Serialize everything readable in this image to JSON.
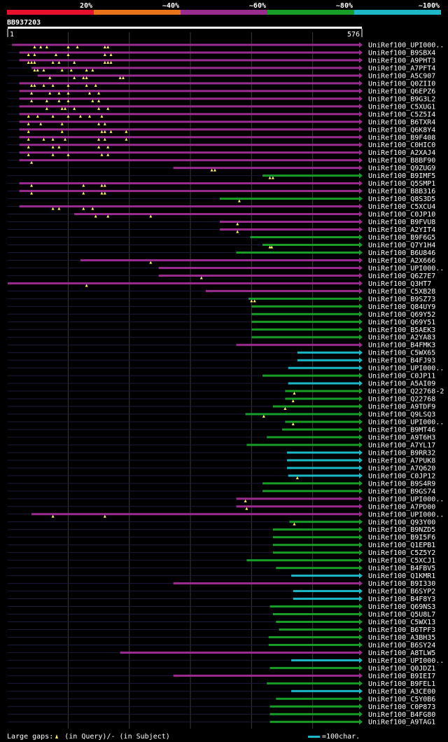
{
  "chart_data": {
    "type": "alignment-overview",
    "query": {
      "name": "BB937203",
      "start": 1,
      "end": 576
    },
    "identity_legend": [
      {
        "label": "20%",
        "color": "#e8112d"
      },
      {
        "label": "~40%",
        "color": "#e8731a"
      },
      {
        "label": "~60%",
        "color": "#9b2c8f"
      },
      {
        "label": "~80%",
        "color": "#189d28"
      },
      {
        "label": "~100%",
        "color": "#1cb8c8"
      }
    ],
    "footer": {
      "gaps_label": "Large gaps:",
      "query_gap_text": "(in Query)/",
      "subject_gap_text": "- (in Subject)",
      "scale_label": "=100char."
    },
    "hits": [
      {
        "name": "UniRef100_UPI000..",
        "start": 8,
        "end": 576,
        "id": "~60%",
        "gaps": [
          45,
          55,
          65,
          100,
          115,
          160,
          165
        ]
      },
      {
        "name": "UniRef100_B9SBX4",
        "start": 20,
        "end": 576,
        "id": "~60%",
        "gaps": [
          35,
          45,
          80,
          100,
          160,
          170
        ]
      },
      {
        "name": "UniRef100_A9PHT3",
        "start": 20,
        "end": 576,
        "id": "~60%",
        "gaps": [
          35,
          40,
          45,
          75,
          85,
          110,
          160,
          165,
          170
        ]
      },
      {
        "name": "UniRef100_A7PFT4",
        "start": 40,
        "end": 576,
        "id": "~60%",
        "gaps": [
          45,
          50,
          60,
          90,
          105,
          130,
          140
        ]
      },
      {
        "name": "UniRef100_A5C907",
        "start": 50,
        "end": 576,
        "id": "~60%",
        "gaps": [
          70,
          110,
          125,
          130,
          185,
          190
        ]
      },
      {
        "name": "UniRef100_Q0ZII0",
        "start": 20,
        "end": 576,
        "id": "~60%",
        "gaps": [
          40,
          45,
          60,
          75,
          100,
          130,
          145
        ]
      },
      {
        "name": "UniRef100_Q6EPZ6",
        "start": 20,
        "end": 576,
        "id": "~60%",
        "gaps": [
          40,
          70,
          85,
          100,
          135,
          150
        ]
      },
      {
        "name": "UniRef100_B9G3L2",
        "start": 20,
        "end": 576,
        "id": "~60%",
        "gaps": [
          40,
          65,
          85,
          100,
          140,
          150
        ]
      },
      {
        "name": "UniRef100_C5XUG1",
        "start": 20,
        "end": 576,
        "id": "~60%",
        "gaps": [
          65,
          90,
          95,
          110,
          150,
          165
        ]
      },
      {
        "name": "UniRef100_C5Z5I4",
        "start": 20,
        "end": 576,
        "id": "~60%",
        "gaps": [
          35,
          50,
          75,
          100,
          120,
          135,
          155
        ]
      },
      {
        "name": "UniRef100_B6TXR4",
        "start": 20,
        "end": 576,
        "id": "~60%",
        "gaps": [
          35,
          55,
          90,
          150,
          160
        ]
      },
      {
        "name": "UniRef100_Q6K8Y4",
        "start": 20,
        "end": 576,
        "id": "~60%",
        "gaps": [
          35,
          90,
          155,
          160,
          170,
          195
        ]
      },
      {
        "name": "UniRef100_B9F408",
        "start": 20,
        "end": 576,
        "id": "~60%",
        "gaps": [
          35,
          60,
          75,
          95,
          150,
          160,
          195
        ]
      },
      {
        "name": "UniRef100_C0HIC0",
        "start": 20,
        "end": 576,
        "id": "~60%",
        "gaps": [
          35,
          75,
          85,
          150,
          165
        ]
      },
      {
        "name": "UniRef100_A2XAJ4",
        "start": 20,
        "end": 576,
        "id": "~60%",
        "gaps": [
          35,
          75,
          100,
          155,
          165
        ]
      },
      {
        "name": "UniRef100_B8BF90",
        "start": 20,
        "end": 576,
        "id": "~60%",
        "gaps": [
          40
        ]
      },
      {
        "name": "UniRef100_Q9ZUG9",
        "start": 272,
        "end": 576,
        "id": "~60%",
        "gaps": [
          335,
          340
        ]
      },
      {
        "name": "UniRef100_B9IMF5",
        "start": 418,
        "end": 576,
        "id": "~80%",
        "gaps": [
          430,
          435
        ]
      },
      {
        "name": "UniRef100_Q5SMP1",
        "start": 20,
        "end": 576,
        "id": "~60%",
        "gaps": [
          40,
          125,
          155,
          160
        ]
      },
      {
        "name": "UniRef100_B8B316",
        "start": 20,
        "end": 576,
        "id": "~60%",
        "gaps": [
          40,
          125,
          155,
          160
        ]
      },
      {
        "name": "UniRef100_Q8S3D5",
        "start": 348,
        "end": 576,
        "id": "~80%",
        "gaps": [
          380
        ]
      },
      {
        "name": "UniRef100_C5XCU4",
        "start": 20,
        "end": 576,
        "id": "~60%",
        "gaps": [
          75,
          85,
          125,
          140
        ]
      },
      {
        "name": "UniRef100_C0JP10",
        "start": 110,
        "end": 576,
        "id": "~60%",
        "gaps": [
          145,
          165,
          235
        ]
      },
      {
        "name": "UniRef100_B9FVU8",
        "start": 348,
        "end": 576,
        "id": "~60%",
        "gaps": [
          377
        ]
      },
      {
        "name": "UniRef100_A2YIT4",
        "start": 348,
        "end": 576,
        "id": "~60%",
        "gaps": [
          377
        ]
      },
      {
        "name": "UniRef100_B9F6G5",
        "start": 398,
        "end": 576,
        "id": "~80%",
        "gaps": []
      },
      {
        "name": "UniRef100_Q7Y1H4",
        "start": 418,
        "end": 576,
        "id": "~80%",
        "gaps": [
          430,
          433
        ]
      },
      {
        "name": "UniRef100_B6U846",
        "start": 375,
        "end": 576,
        "id": "~80%",
        "gaps": []
      },
      {
        "name": "UniRef100_A2X666",
        "start": 120,
        "end": 576,
        "id": "~60%",
        "gaps": [
          235
        ]
      },
      {
        "name": "UniRef100_UPI000..",
        "start": 248,
        "end": 576,
        "id": "~60%",
        "gaps": []
      },
      {
        "name": "UniRef100_Q6Z7E7",
        "start": 248,
        "end": 576,
        "id": "~60%",
        "gaps": [
          318
        ]
      },
      {
        "name": "UniRef100_Q3HT7",
        "start": 1,
        "end": 576,
        "id": "~60%",
        "gaps": [
          130
        ]
      },
      {
        "name": "UniRef100_C5XB28",
        "start": 325,
        "end": 576,
        "id": "~60%",
        "gaps": []
      },
      {
        "name": "UniRef100_B9SZ73",
        "start": 395,
        "end": 576,
        "id": "~80%",
        "gaps": [
          400,
          405
        ]
      },
      {
        "name": "UniRef100_Q84UY9",
        "start": 400,
        "end": 576,
        "id": "~80%",
        "gaps": []
      },
      {
        "name": "UniRef100_Q69Y52",
        "start": 400,
        "end": 576,
        "id": "~80%",
        "gaps": []
      },
      {
        "name": "UniRef100_Q69Y51",
        "start": 400,
        "end": 576,
        "id": "~80%",
        "gaps": []
      },
      {
        "name": "UniRef100_B5AEK3",
        "start": 400,
        "end": 576,
        "id": "~80%",
        "gaps": []
      },
      {
        "name": "UniRef100_A2YA83",
        "start": 400,
        "end": 576,
        "id": "~80%",
        "gaps": []
      },
      {
        "name": "UniRef100_B4FMK3",
        "start": 375,
        "end": 576,
        "id": "~60%",
        "gaps": []
      },
      {
        "name": "UniRef100_C5WX65",
        "start": 475,
        "end": 576,
        "id": "~100%",
        "gaps": []
      },
      {
        "name": "UniRef100_B4FJ93",
        "start": 475,
        "end": 576,
        "id": "~100%",
        "gaps": []
      },
      {
        "name": "UniRef100_UPI000..",
        "start": 460,
        "end": 576,
        "id": "~100%",
        "gaps": []
      },
      {
        "name": "UniRef100_C0JP11",
        "start": 418,
        "end": 576,
        "id": "~80%",
        "gaps": []
      },
      {
        "name": "UniRef100_A5AI09",
        "start": 460,
        "end": 576,
        "id": "~100%",
        "gaps": []
      },
      {
        "name": "UniRef100_Q22768-2",
        "start": 455,
        "end": 576,
        "id": "~80%",
        "gaps": [
          470
        ]
      },
      {
        "name": "UniRef100_Q22768",
        "start": 455,
        "end": 576,
        "id": "~80%",
        "gaps": [
          468
        ]
      },
      {
        "name": "UniRef100_A9TDF9",
        "start": 435,
        "end": 576,
        "id": "~80%",
        "gaps": [
          455
        ]
      },
      {
        "name": "UniRef100_Q9LSQ3",
        "start": 390,
        "end": 576,
        "id": "~80%",
        "gaps": [
          420
        ]
      },
      {
        "name": "UniRef100_UPI000..",
        "start": 455,
        "end": 576,
        "id": "~80%",
        "gaps": [
          468
        ]
      },
      {
        "name": "UniRef100_B9MT46",
        "start": 450,
        "end": 576,
        "id": "~80%",
        "gaps": []
      },
      {
        "name": "UniRef100_A9T6H3",
        "start": 425,
        "end": 576,
        "id": "~80%",
        "gaps": []
      },
      {
        "name": "UniRef100_A7YL17",
        "start": 392,
        "end": 576,
        "id": "~80%",
        "gaps": []
      },
      {
        "name": "UniRef100_B9RR32",
        "start": 458,
        "end": 576,
        "id": "~100%",
        "gaps": []
      },
      {
        "name": "UniRef100_A7PUK8",
        "start": 458,
        "end": 576,
        "id": "~100%",
        "gaps": []
      },
      {
        "name": "UniRef100_A7Q620",
        "start": 458,
        "end": 576,
        "id": "~100%",
        "gaps": []
      },
      {
        "name": "UniRef100_C0JP12",
        "start": 460,
        "end": 576,
        "id": "~100%",
        "gaps": [
          475
        ]
      },
      {
        "name": "UniRef100_B9S4R9",
        "start": 418,
        "end": 576,
        "id": "~80%",
        "gaps": []
      },
      {
        "name": "UniRef100_B9GS74",
        "start": 418,
        "end": 576,
        "id": "~80%",
        "gaps": []
      },
      {
        "name": "UniRef100_UPI000..",
        "start": 375,
        "end": 576,
        "id": "~60%",
        "gaps": [
          390
        ]
      },
      {
        "name": "UniRef100_A7PD00",
        "start": 375,
        "end": 576,
        "id": "~60%",
        "gaps": [
          392
        ]
      },
      {
        "name": "UniRef100_UPI000..",
        "start": 40,
        "end": 576,
        "id": "~60%",
        "gaps": [
          75,
          160
        ]
      },
      {
        "name": "UniRef100_Q93Y00",
        "start": 462,
        "end": 576,
        "id": "~80%",
        "gaps": [
          470
        ]
      },
      {
        "name": "UniRef100_B9NZD5",
        "start": 435,
        "end": 576,
        "id": "~80%",
        "gaps": []
      },
      {
        "name": "UniRef100_B9I5F6",
        "start": 435,
        "end": 576,
        "id": "~80%",
        "gaps": []
      },
      {
        "name": "UniRef100_Q1EPB1",
        "start": 435,
        "end": 576,
        "id": "~80%",
        "gaps": []
      },
      {
        "name": "UniRef100_C5Z5Y2",
        "start": 435,
        "end": 576,
        "id": "~80%",
        "gaps": []
      },
      {
        "name": "UniRef100_C5XCJ1",
        "start": 392,
        "end": 576,
        "id": "~80%",
        "gaps": []
      },
      {
        "name": "UniRef100_B4FBV5",
        "start": 440,
        "end": 576,
        "id": "~80%",
        "gaps": []
      },
      {
        "name": "UniRef100_Q1KMR1",
        "start": 465,
        "end": 576,
        "id": "~100%",
        "gaps": []
      },
      {
        "name": "UniRef100_B9I330",
        "start": 272,
        "end": 576,
        "id": "~60%",
        "gaps": []
      },
      {
        "name": "UniRef100_B6SYP2",
        "start": 468,
        "end": 576,
        "id": "~100%",
        "gaps": []
      },
      {
        "name": "UniRef100_B4F8Y3",
        "start": 468,
        "end": 576,
        "id": "~100%",
        "gaps": []
      },
      {
        "name": "UniRef100_Q69NS3",
        "start": 430,
        "end": 576,
        "id": "~80%",
        "gaps": []
      },
      {
        "name": "UniRef100_Q5U8L7",
        "start": 435,
        "end": 576,
        "id": "~80%",
        "gaps": []
      },
      {
        "name": "UniRef100_C5WX13",
        "start": 440,
        "end": 576,
        "id": "~80%",
        "gaps": []
      },
      {
        "name": "UniRef100_B6TPF3",
        "start": 445,
        "end": 576,
        "id": "~80%",
        "gaps": []
      },
      {
        "name": "UniRef100_A3BH35",
        "start": 428,
        "end": 576,
        "id": "~80%",
        "gaps": []
      },
      {
        "name": "UniRef100_B6SY24",
        "start": 428,
        "end": 576,
        "id": "~80%",
        "gaps": []
      },
      {
        "name": "UniRef100_A8TLW5",
        "start": 185,
        "end": 576,
        "id": "~60%",
        "gaps": []
      },
      {
        "name": "UniRef100_UPI000..",
        "start": 465,
        "end": 576,
        "id": "~100%",
        "gaps": []
      },
      {
        "name": "UniRef100_Q0JDZ1",
        "start": 430,
        "end": 576,
        "id": "~80%",
        "gaps": []
      },
      {
        "name": "UniRef100_B9IEI7",
        "start": 272,
        "end": 576,
        "id": "~60%",
        "gaps": []
      },
      {
        "name": "UniRef100_B9FEL1",
        "start": 425,
        "end": 576,
        "id": "~80%",
        "gaps": []
      },
      {
        "name": "UniRef100_A3CE00",
        "start": 465,
        "end": 576,
        "id": "~100%",
        "gaps": []
      },
      {
        "name": "UniRef100_C5Y0B6",
        "start": 440,
        "end": 576,
        "id": "~80%",
        "gaps": []
      },
      {
        "name": "UniRef100_C0P873",
        "start": 430,
        "end": 576,
        "id": "~80%",
        "gaps": []
      },
      {
        "name": "UniRef100_B4FG80",
        "start": 430,
        "end": 576,
        "id": "~80%",
        "gaps": []
      },
      {
        "name": "UniRef100_A9TAG1",
        "start": 430,
        "end": 576,
        "id": "~80%",
        "gaps": []
      }
    ]
  }
}
